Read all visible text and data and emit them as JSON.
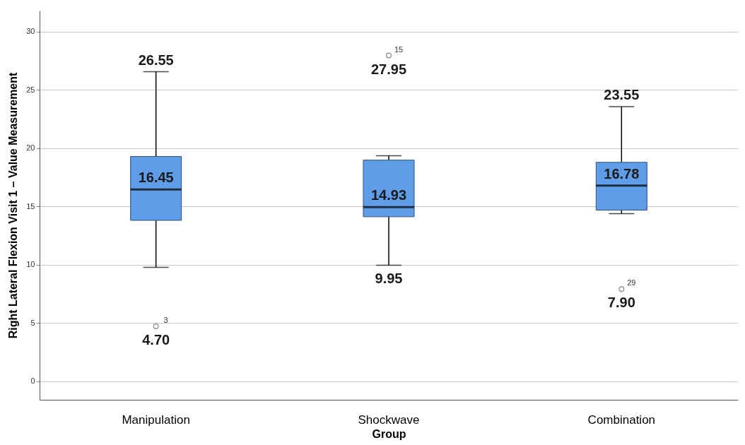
{
  "chart_data": {
    "type": "box",
    "xlabel": "Group",
    "ylabel": "Right Lateral Flexion Visit 1 – Value Measurement",
    "categories": [
      "Manipulation",
      "Shockwave",
      "Combination"
    ],
    "boxes": [
      {
        "low": 9.77,
        "q1": 13.8,
        "median": 16.45,
        "q3": 19.28,
        "high": 26.55
      },
      {
        "low": 9.95,
        "q1": 14.11,
        "median": 14.93,
        "q3": 18.97,
        "high": 19.34
      },
      {
        "low": 14.37,
        "q1": 14.68,
        "median": 16.78,
        "q3": 18.78,
        "high": 23.55
      }
    ],
    "series": [
      {
        "type": "scatter",
        "color": "#555555",
        "x": [
          "Manipulation",
          "Shockwave",
          "Combination"
        ],
        "values": [
          4.7,
          27.95,
          7.9
        ],
        "value_labels": [
          "4.70",
          "27.95",
          "7.90"
        ]
      }
    ],
    "marker": "circle",
    "color": "#5f9de8",
    "ylim": [
      -1.6,
      31.8
    ],
    "yticks": [
      0,
      5,
      10,
      15,
      20,
      25,
      30
    ],
    "grid": "y",
    "annotations": [
      {
        "text": "26.55",
        "x": "Manipulation",
        "y": 26.55
      },
      {
        "text": "16.45",
        "x": "Manipulation",
        "y": 16.45
      },
      {
        "text": "3",
        "x": "Manipulation",
        "y": 4.7
      },
      {
        "text": "15",
        "x": "Shockwave",
        "y": 27.95
      },
      {
        "text": "14.93",
        "x": "Shockwave",
        "y": 14.93
      },
      {
        "text": "9.95",
        "x": "Shockwave",
        "y": 9.95
      },
      {
        "text": "23.55",
        "x": "Combination",
        "y": 23.55
      },
      {
        "text": "16.78",
        "x": "Combination",
        "y": 16.78
      },
      {
        "text": "29",
        "x": "Combination",
        "y": 7.9
      }
    ]
  }
}
